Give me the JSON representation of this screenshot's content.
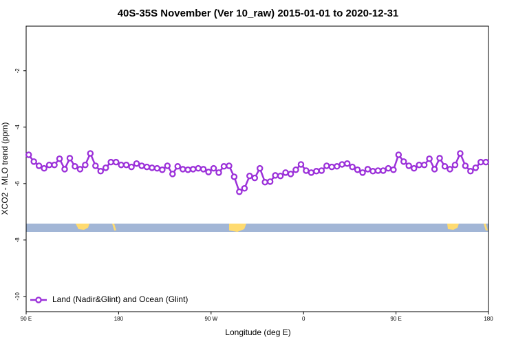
{
  "chart_data": {
    "type": "line",
    "title": "40S-35S November (Ver 10_raw)   2015-01-01 to 2020-12-31",
    "x_label": "Longitude (deg E)",
    "y_label": "XCO2 - MLO trend (ppm)",
    "xlim": [
      90,
      540
    ],
    "ylim": [
      -10.54,
      -0.42
    ],
    "xticks": [
      {
        "value": 90,
        "label": "90 E"
      },
      180,
      {
        "value": 270,
        "label": "90 W"
      },
      {
        "value": 360,
        "label": "0"
      },
      {
        "value": 450,
        "label": "90 E"
      },
      {
        "value": 540,
        "label": "180"
      }
    ],
    "yticks": [
      -2,
      -4,
      -6,
      -8,
      -10
    ],
    "legend": "bottom-left",
    "x": [
      92.5,
      97.5,
      102.5,
      107.5,
      112.5,
      117.5,
      122.5,
      127.5,
      132.5,
      137.5,
      142.5,
      147.5,
      152.5,
      157.5,
      162.5,
      167.5,
      172.5,
      177.5,
      182.5,
      187.5,
      192.5,
      197.5,
      202.5,
      207.5,
      212.5,
      217.5,
      222.5,
      227.5,
      232.5,
      237.5,
      242.5,
      247.5,
      252.5,
      257.5,
      262.5,
      267.5,
      272.5,
      277.5,
      282.5,
      287.5,
      292.5,
      297.5,
      302.5,
      307.5,
      312.5,
      317.5,
      322.5,
      327.5,
      332.5,
      337.5,
      342.5,
      347.5,
      352.5,
      357.5,
      362.5,
      367.5,
      372.5,
      377.5,
      382.5,
      387.5,
      392.5,
      397.5,
      402.5,
      407.5,
      412.5,
      417.5,
      422.5,
      427.5,
      432.5,
      437.5,
      442.5,
      447.5,
      452.5,
      457.5,
      462.5,
      467.5,
      472.5,
      477.5,
      482.5,
      487.5,
      492.5,
      497.5,
      502.5,
      507.5,
      512.5,
      517.5,
      522.5,
      527.5,
      532.5,
      537.5
    ],
    "series": [
      {
        "name": "Land (Nadir&Glint) and Ocean (Glint)",
        "color": "#9b30d9",
        "values": [
          -4.98,
          -5.22,
          -5.37,
          -5.46,
          -5.34,
          -5.34,
          -5.12,
          -5.49,
          -5.1,
          -5.39,
          -5.49,
          -5.34,
          -4.93,
          -5.37,
          -5.56,
          -5.44,
          -5.24,
          -5.24,
          -5.34,
          -5.34,
          -5.41,
          -5.29,
          -5.37,
          -5.41,
          -5.44,
          -5.46,
          -5.51,
          -5.37,
          -5.66,
          -5.39,
          -5.49,
          -5.51,
          -5.49,
          -5.46,
          -5.49,
          -5.59,
          -5.46,
          -5.61,
          -5.39,
          -5.37,
          -5.76,
          -6.29,
          -6.17,
          -5.73,
          -5.8,
          -5.46,
          -5.95,
          -5.93,
          -5.71,
          -5.73,
          -5.61,
          -5.66,
          -5.51,
          -5.32,
          -5.54,
          -5.61,
          -5.56,
          -5.54,
          -5.37,
          -5.41,
          -5.39,
          -5.32,
          -5.29,
          -5.41,
          -5.51,
          -5.61,
          -5.49,
          -5.56,
          -5.54,
          -5.54,
          -5.46,
          -5.51,
          -4.98,
          -5.22,
          -5.37,
          -5.46,
          -5.34,
          -5.34,
          -5.12,
          -5.49,
          -5.1,
          -5.39,
          -5.49,
          -5.34,
          -4.93,
          -5.37,
          -5.56,
          -5.44,
          -5.24,
          -5.24
        ]
      }
    ]
  }
}
